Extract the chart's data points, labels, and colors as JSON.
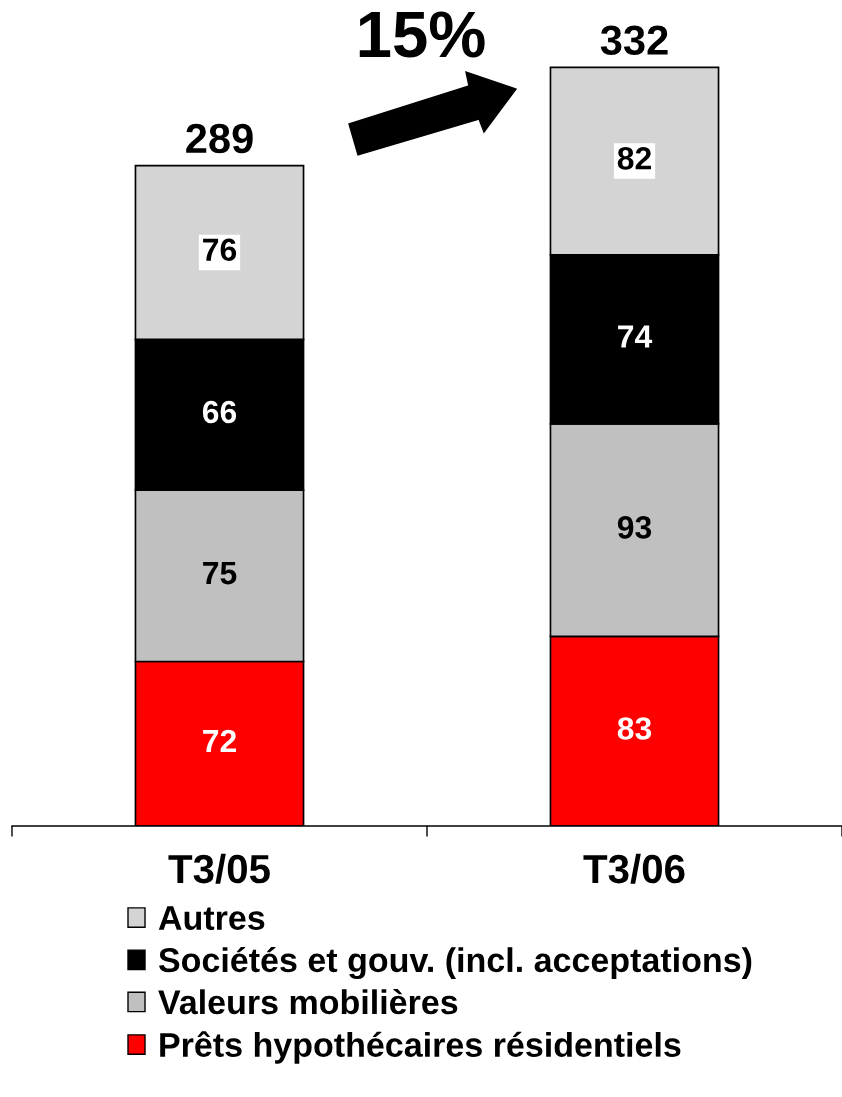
{
  "chart_data": {
    "type": "bar",
    "stacked": true,
    "categories": [
      "T3/05",
      "T3/06"
    ],
    "series": [
      {
        "name": "Prêts hypothécaires résidentiels",
        "color": "#ff0000",
        "values": [
          72,
          83
        ]
      },
      {
        "name": "Valeurs mobilières",
        "color": "#c0c0c0",
        "values": [
          75,
          93
        ]
      },
      {
        "name": "Sociétés et gouv. (incl. acceptations)",
        "color": "#000000",
        "values": [
          66,
          74
        ]
      },
      {
        "name": "Autres",
        "color": "#d4d4d4",
        "values": [
          76,
          82
        ]
      }
    ],
    "data_labels": true,
    "totals": [
      "289",
      "332"
    ],
    "annotations": [
      "15%"
    ],
    "legend": "bottom"
  }
}
